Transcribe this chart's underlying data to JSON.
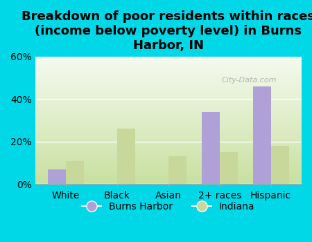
{
  "title": "Breakdown of poor residents within races\n(income below poverty level) in Burns\nHarbor, IN",
  "categories": [
    "White",
    "Black",
    "Asian",
    "2+ races",
    "Hispanic"
  ],
  "burns_harbor": [
    7,
    0,
    0,
    34,
    46
  ],
  "indiana": [
    11,
    26,
    13,
    15,
    18
  ],
  "burns_harbor_color": "#b0a0d8",
  "indiana_color": "#c8d89a",
  "background_color": "#00d8e8",
  "grad_top": "#c8e0a0",
  "grad_bottom": "#f5faf0",
  "ylim": [
    0,
    60
  ],
  "yticks": [
    0,
    20,
    40,
    60
  ],
  "ytick_labels": [
    "0%",
    "20%",
    "40%",
    "60%"
  ],
  "bar_width": 0.35,
  "legend_burns_harbor": "Burns Harbor",
  "legend_indiana": "Indiana",
  "title_fontsize": 13,
  "tick_fontsize": 10,
  "legend_fontsize": 10
}
